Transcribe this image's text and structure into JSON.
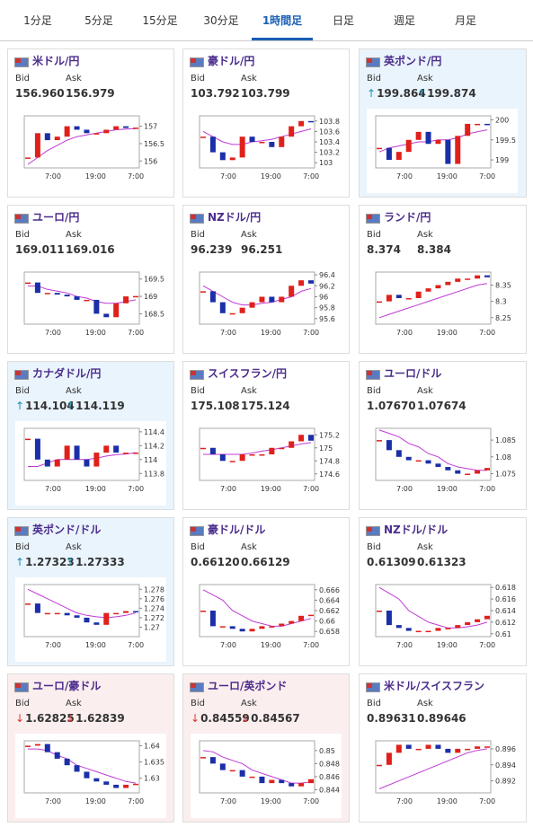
{
  "tabs": {
    "items": [
      "1分足",
      "5分足",
      "15分足",
      "30分足",
      "1時間足",
      "日足",
      "週足",
      "月足"
    ],
    "active": 4
  },
  "labels": {
    "bid": "Bid",
    "ask": "Ask"
  },
  "cards": [
    {
      "name": "米ドル/円",
      "bid": "156.960",
      "ask": "156.979",
      "ylim": [
        155.8,
        157.3
      ],
      "yticks": [
        156,
        156.5,
        157
      ],
      "xticks": [
        "7:00",
        "19:00",
        "7:00"
      ],
      "price": [
        156.1,
        156.8,
        156.6,
        156.7,
        157.0,
        156.9,
        156.8,
        156.8,
        156.9,
        157.0,
        156.95,
        156.96
      ],
      "ma": [
        155.9,
        156.1,
        156.3,
        156.45,
        156.6,
        156.7,
        156.75,
        156.8,
        156.85,
        156.9,
        156.92,
        156.93
      ]
    },
    {
      "name": "豪ドル/円",
      "bid": "103.792",
      "ask": "103.799",
      "ylim": [
        102.9,
        103.9
      ],
      "yticks": [
        103,
        103.2,
        103.4,
        103.6,
        103.8
      ],
      "xticks": [
        "7:00",
        "19:00",
        "7:00"
      ],
      "price": [
        103.5,
        103.2,
        103.05,
        103.1,
        103.5,
        103.4,
        103.4,
        103.3,
        103.5,
        103.7,
        103.8,
        103.79
      ],
      "ma": [
        103.6,
        103.5,
        103.4,
        103.35,
        103.35,
        103.4,
        103.42,
        103.45,
        103.5,
        103.55,
        103.6,
        103.65
      ]
    },
    {
      "name": "英ポンド/円",
      "trend": "up",
      "arrow": "↑",
      "bid": "199.864",
      "ask": "199.874",
      "ylim": [
        198.8,
        200.1
      ],
      "yticks": [
        199,
        199.5,
        200
      ],
      "xticks": [
        "7:00",
        "19:00",
        "7:00"
      ],
      "price": [
        199.3,
        199.0,
        199.2,
        199.5,
        199.7,
        199.4,
        199.5,
        198.9,
        199.6,
        199.9,
        199.9,
        199.87
      ],
      "ma": [
        199.2,
        199.3,
        199.35,
        199.4,
        199.45,
        199.45,
        199.5,
        199.5,
        199.55,
        199.65,
        199.7,
        199.75
      ]
    },
    {
      "name": "ユーロ/円",
      "bid": "169.011",
      "ask": "169.016",
      "ylim": [
        168.2,
        169.7
      ],
      "yticks": [
        168.5,
        169,
        169.5
      ],
      "xticks": [
        "7:00",
        "19:00",
        "7:00"
      ],
      "price": [
        169.4,
        169.1,
        169.1,
        169.05,
        169.0,
        168.9,
        168.9,
        168.5,
        168.4,
        168.8,
        169.0,
        169.01
      ],
      "ma": [
        169.3,
        169.3,
        169.2,
        169.15,
        169.1,
        169.0,
        168.95,
        168.85,
        168.8,
        168.8,
        168.85,
        168.9
      ]
    },
    {
      "name": "NZドル/円",
      "bid": "96.239",
      "ask": "96.251",
      "ylim": [
        95.5,
        96.45
      ],
      "yticks": [
        95.6,
        95.8,
        96,
        96.2,
        96.4
      ],
      "xticks": [
        "7:00",
        "19:00",
        "7:00"
      ],
      "price": [
        96.1,
        95.9,
        95.7,
        95.7,
        95.8,
        95.9,
        96.0,
        95.9,
        96.0,
        96.2,
        96.3,
        96.24
      ],
      "ma": [
        96.2,
        96.1,
        96.0,
        95.9,
        95.85,
        95.85,
        95.88,
        95.9,
        95.95,
        96.0,
        96.1,
        96.15
      ]
    },
    {
      "name": "ランド/円",
      "bid": "8.374",
      "ask": "8.384",
      "ylim": [
        8.23,
        8.39
      ],
      "yticks": [
        8.25,
        8.3,
        8.35
      ],
      "xticks": [
        "7:00",
        "19:00",
        "7:00"
      ],
      "price": [
        8.3,
        8.32,
        8.31,
        8.31,
        8.33,
        8.34,
        8.35,
        8.36,
        8.37,
        8.37,
        8.38,
        8.374
      ],
      "ma": [
        8.25,
        8.26,
        8.27,
        8.28,
        8.29,
        8.3,
        8.31,
        8.32,
        8.33,
        8.34,
        8.35,
        8.355
      ]
    },
    {
      "name": "カナダドル/円",
      "trend": "up",
      "arrow": "↑",
      "bid": "114.104",
      "ask": "114.119",
      "ylim": [
        113.7,
        114.45
      ],
      "yticks": [
        113.8,
        114,
        114.2,
        114.4
      ],
      "xticks": [
        "7:00",
        "19:00",
        "7:00"
      ],
      "price": [
        114.3,
        114.0,
        113.9,
        114.0,
        114.2,
        114.0,
        113.9,
        114.1,
        114.2,
        114.1,
        114.1,
        114.1
      ],
      "ma": [
        113.9,
        113.9,
        113.95,
        114.0,
        114.0,
        114.0,
        114.0,
        114.02,
        114.05,
        114.07,
        114.08,
        114.1
      ]
    },
    {
      "name": "スイスフラン/円",
      "bid": "175.108",
      "ask": "175.124",
      "ylim": [
        174.5,
        175.3
      ],
      "yticks": [
        174.6,
        174.8,
        175,
        175.2
      ],
      "xticks": [
        "7:00",
        "19:00",
        "7:00"
      ],
      "price": [
        175.0,
        174.9,
        174.8,
        174.8,
        174.9,
        174.9,
        174.9,
        175.0,
        175.0,
        175.1,
        175.2,
        175.11
      ],
      "ma": [
        174.9,
        174.9,
        174.9,
        174.9,
        174.9,
        174.92,
        174.95,
        174.97,
        175.0,
        175.03,
        175.06,
        175.08
      ]
    },
    {
      "name": "ユーロ/ドル",
      "bid": "1.07670",
      "ask": "1.07674",
      "ylim": [
        1.073,
        1.0885
      ],
      "yticks": [
        1.075,
        1.08,
        1.085
      ],
      "xticks": [
        "7:00",
        "19:00",
        "7:00"
      ],
      "price": [
        1.085,
        1.082,
        1.08,
        1.079,
        1.079,
        1.078,
        1.077,
        1.076,
        1.075,
        1.075,
        1.076,
        1.0767
      ],
      "ma": [
        1.088,
        1.087,
        1.086,
        1.084,
        1.083,
        1.081,
        1.08,
        1.078,
        1.077,
        1.0765,
        1.076,
        1.076
      ]
    },
    {
      "name": "英ポンド/ドル",
      "trend": "up",
      "arrow": "↑",
      "bid": "1.27323",
      "ask": "1.27333",
      "ylim": [
        1.268,
        1.279
      ],
      "yticks": [
        1.27,
        1.272,
        1.274,
        1.276,
        1.278
      ],
      "xticks": [
        "7:00",
        "19:00",
        "7:00"
      ],
      "price": [
        1.275,
        1.273,
        1.273,
        1.273,
        1.2725,
        1.272,
        1.271,
        1.2705,
        1.273,
        1.273,
        1.2734,
        1.2732
      ],
      "ma": [
        1.278,
        1.277,
        1.276,
        1.275,
        1.274,
        1.273,
        1.2725,
        1.2722,
        1.272,
        1.2722,
        1.2725,
        1.273
      ]
    },
    {
      "name": "豪ドル/ドル",
      "bid": "0.66120",
      "ask": "0.66129",
      "ylim": [
        0.657,
        0.667
      ],
      "yticks": [
        0.658,
        0.66,
        0.662,
        0.664,
        0.666
      ],
      "xticks": [
        "7:00",
        "19:00",
        "7:00"
      ],
      "price": [
        0.662,
        0.659,
        0.659,
        0.6585,
        0.658,
        0.6585,
        0.659,
        0.659,
        0.6595,
        0.66,
        0.661,
        0.6612
      ],
      "ma": [
        0.666,
        0.665,
        0.664,
        0.662,
        0.661,
        0.66,
        0.6595,
        0.659,
        0.659,
        0.6595,
        0.66,
        0.6605
      ]
    },
    {
      "name": "NZドル/ドル",
      "bid": "0.61309",
      "ask": "0.61323",
      "ylim": [
        0.6095,
        0.6185
      ],
      "yticks": [
        0.61,
        0.612,
        0.614,
        0.616,
        0.618
      ],
      "xticks": [
        "7:00",
        "19:00",
        "7:00"
      ],
      "price": [
        0.614,
        0.6115,
        0.611,
        0.6105,
        0.6105,
        0.6105,
        0.611,
        0.611,
        0.6115,
        0.612,
        0.6125,
        0.6131
      ],
      "ma": [
        0.618,
        0.617,
        0.616,
        0.614,
        0.613,
        0.612,
        0.6115,
        0.611,
        0.611,
        0.6112,
        0.6115,
        0.612
      ]
    },
    {
      "name": "ユーロ/豪ドル",
      "trend": "down",
      "arrow": "↓",
      "bid": "1.62825",
      "ask": "1.62839",
      "ylim": [
        1.6255,
        1.6415
      ],
      "yticks": [
        1.63,
        1.635,
        1.64
      ],
      "xticks": [
        "7:00",
        "19:00",
        "7:00"
      ],
      "price": [
        1.64,
        1.6405,
        1.638,
        1.636,
        1.634,
        1.632,
        1.63,
        1.629,
        1.628,
        1.627,
        1.628,
        1.6283
      ],
      "ma": [
        1.639,
        1.639,
        1.6385,
        1.637,
        1.636,
        1.634,
        1.633,
        1.632,
        1.631,
        1.63,
        1.629,
        1.6285
      ]
    },
    {
      "name": "ユーロ/英ポンド",
      "trend": "down",
      "arrow": "↓",
      "bid": "0.84559",
      "ask": "0.84567",
      "ylim": [
        0.8435,
        0.8515
      ],
      "yticks": [
        0.844,
        0.846,
        0.848,
        0.85
      ],
      "xticks": [
        "7:00",
        "19:00",
        "7:00"
      ],
      "price": [
        0.849,
        0.848,
        0.847,
        0.847,
        0.846,
        0.846,
        0.845,
        0.8455,
        0.845,
        0.8445,
        0.845,
        0.8456
      ],
      "ma": [
        0.85,
        0.8498,
        0.849,
        0.8485,
        0.848,
        0.847,
        0.8465,
        0.846,
        0.8455,
        0.845,
        0.845,
        0.8452
      ]
    },
    {
      "name": "米ドル/スイスフラン",
      "bid": "0.89631",
      "ask": "0.89646",
      "ylim": [
        0.8905,
        0.897
      ],
      "yticks": [
        0.892,
        0.894,
        0.896
      ],
      "xticks": [
        "7:00",
        "19:00",
        "7:00"
      ],
      "price": [
        0.894,
        0.8955,
        0.8965,
        0.896,
        0.896,
        0.8965,
        0.896,
        0.8955,
        0.896,
        0.896,
        0.8963,
        0.8963
      ],
      "ma": [
        0.891,
        0.8915,
        0.892,
        0.8925,
        0.893,
        0.8935,
        0.894,
        0.8945,
        0.895,
        0.8955,
        0.8958,
        0.896
      ]
    }
  ]
}
